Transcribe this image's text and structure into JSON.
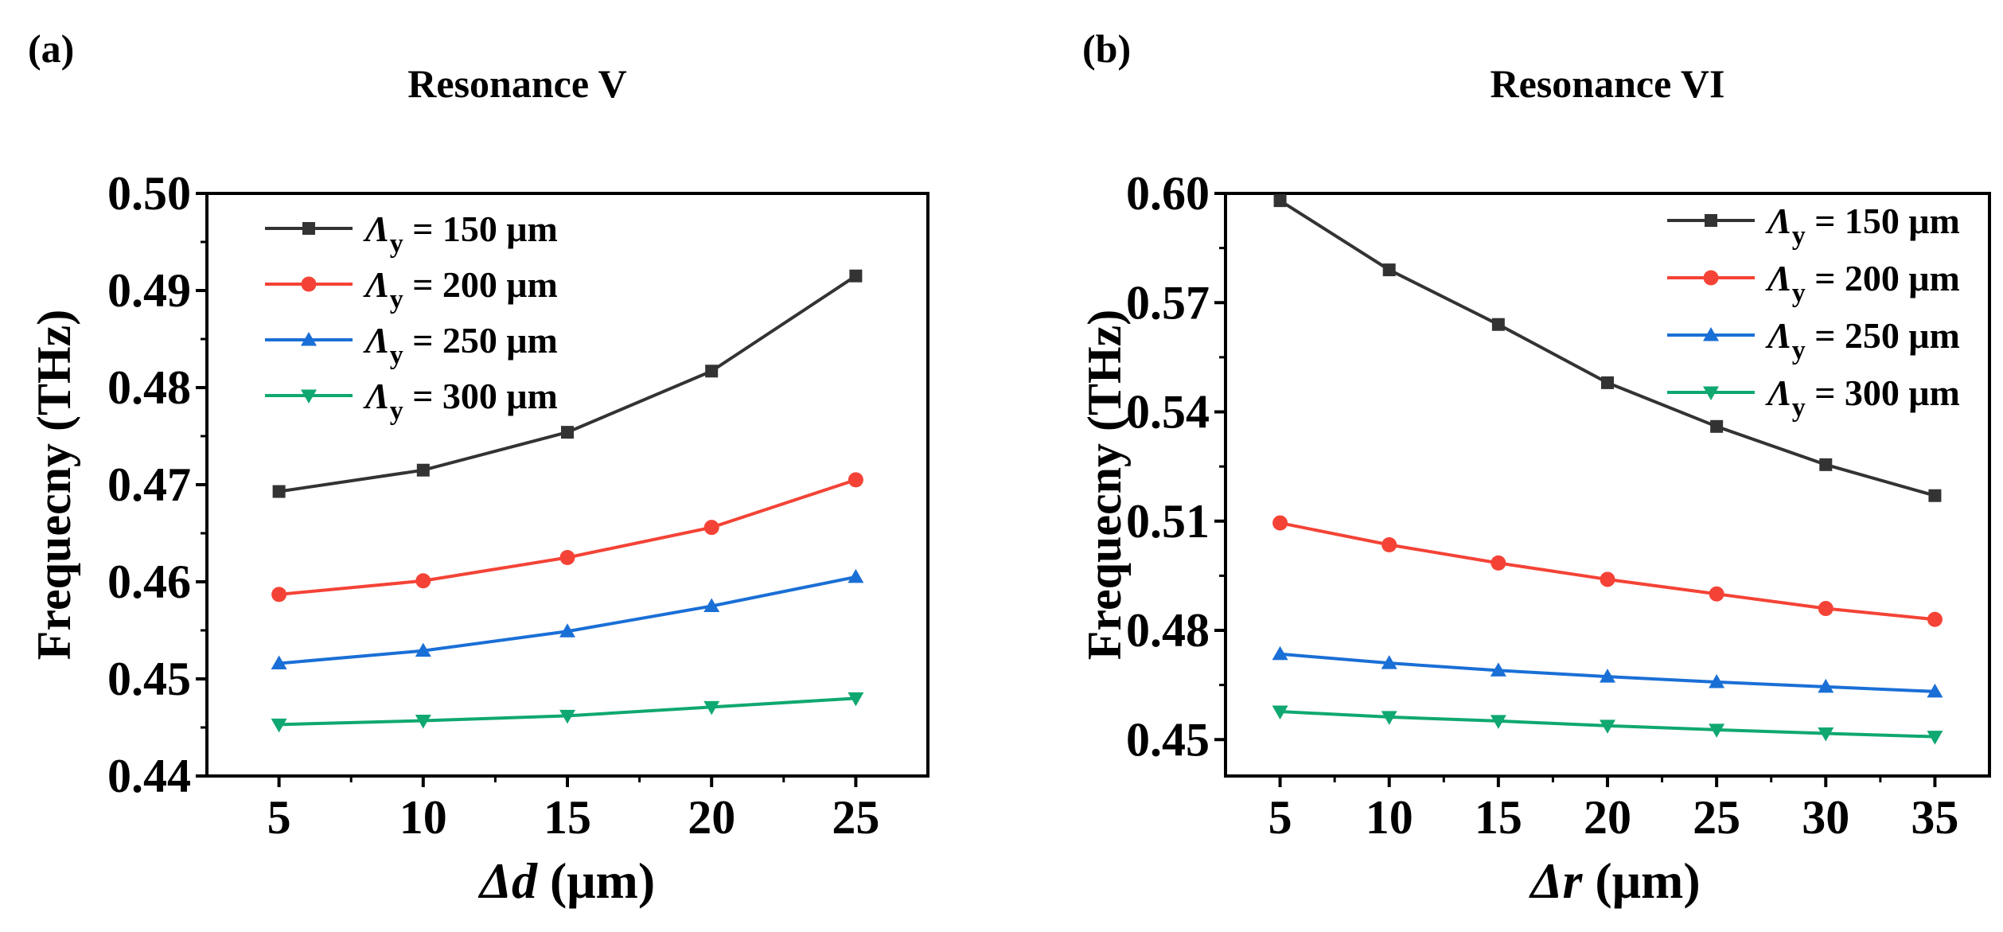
{
  "chart_data": [
    {
      "type": "line",
      "panel_label": "(a)",
      "title": "Resonance V",
      "ylabel": "Frequecny (THz)",
      "xlabel_var": "Δd",
      "xlabel_unit": "(μm)",
      "xlim": [
        2.5,
        27.5
      ],
      "ylim": [
        0.44,
        0.5
      ],
      "x": [
        5,
        10,
        15,
        20,
        25
      ],
      "xticks": [
        5,
        10,
        15,
        20,
        25
      ],
      "yticks": [
        "0.44",
        "0.45",
        "0.46",
        "0.47",
        "0.48",
        "0.49",
        "0.50"
      ],
      "legend_position": "top-left",
      "series": [
        {
          "name": "Λy = 150 μm",
          "legend_var": "Λ",
          "legend_sub": "y",
          "legend_val": " = 150 μm",
          "color": "#333333",
          "marker": "square",
          "values": [
            0.4693,
            0.4715,
            0.4754,
            0.4817,
            0.4915
          ]
        },
        {
          "name": "Λy = 200 μm",
          "legend_var": "Λ",
          "legend_sub": "y",
          "legend_val": " = 200 μm",
          "color": "#f44336",
          "marker": "circle",
          "values": [
            0.4587,
            0.4601,
            0.4625,
            0.4656,
            0.4705
          ]
        },
        {
          "name": "Λy = 250 μm",
          "legend_var": "Λ",
          "legend_sub": "y",
          "legend_val": " = 250 μm",
          "color": "#1a6fd6",
          "marker": "triangle-up",
          "values": [
            0.4516,
            0.4529,
            0.4549,
            0.4575,
            0.4605
          ]
        },
        {
          "name": "Λy = 300 μm",
          "legend_var": "Λ",
          "legend_sub": "y",
          "legend_val": " = 300 μm",
          "color": "#0fa870",
          "marker": "triangle-down",
          "values": [
            0.4453,
            0.4457,
            0.4462,
            0.4471,
            0.448
          ]
        }
      ]
    },
    {
      "type": "line",
      "panel_label": "(b)",
      "title": "Resonance VI",
      "ylabel": "Frequecny (THz)",
      "xlabel_var": "Δr",
      "xlabel_unit": "(μm)",
      "xlim": [
        2.5,
        37.5
      ],
      "ylim": [
        0.44,
        0.6
      ],
      "x": [
        5,
        10,
        15,
        20,
        25,
        30,
        35
      ],
      "xticks": [
        5,
        10,
        15,
        20,
        25,
        30,
        35
      ],
      "yticks": [
        "0.45",
        "0.48",
        "0.51",
        "0.54",
        "0.57",
        "0.60"
      ],
      "legend_position": "top-right",
      "series": [
        {
          "name": "Λy = 150 μm",
          "legend_var": "Λ",
          "legend_sub": "y",
          "legend_val": " = 150 μm",
          "color": "#333333",
          "marker": "square",
          "values": [
            0.598,
            0.579,
            0.564,
            0.548,
            0.536,
            0.5255,
            0.517
          ]
        },
        {
          "name": "Λy = 200 μm",
          "legend_var": "Λ",
          "legend_sub": "y",
          "legend_val": " = 200 μm",
          "color": "#f44336",
          "marker": "circle",
          "values": [
            0.5095,
            0.5035,
            0.4985,
            0.494,
            0.49,
            0.486,
            0.483
          ]
        },
        {
          "name": "Λy = 250 μm",
          "legend_var": "Λ",
          "legend_sub": "y",
          "legend_val": " = 250 μm",
          "color": "#1a6fd6",
          "marker": "triangle-up",
          "values": [
            0.4735,
            0.471,
            0.469,
            0.4673,
            0.4658,
            0.4645,
            0.4632
          ]
        },
        {
          "name": "Λy = 300 μm",
          "legend_var": "Λ",
          "legend_sub": "y",
          "legend_val": " = 300 μm",
          "color": "#0fa870",
          "marker": "triangle-down",
          "values": [
            0.4577,
            0.4562,
            0.4551,
            0.4538,
            0.4527,
            0.4517,
            0.4508
          ]
        }
      ]
    }
  ]
}
